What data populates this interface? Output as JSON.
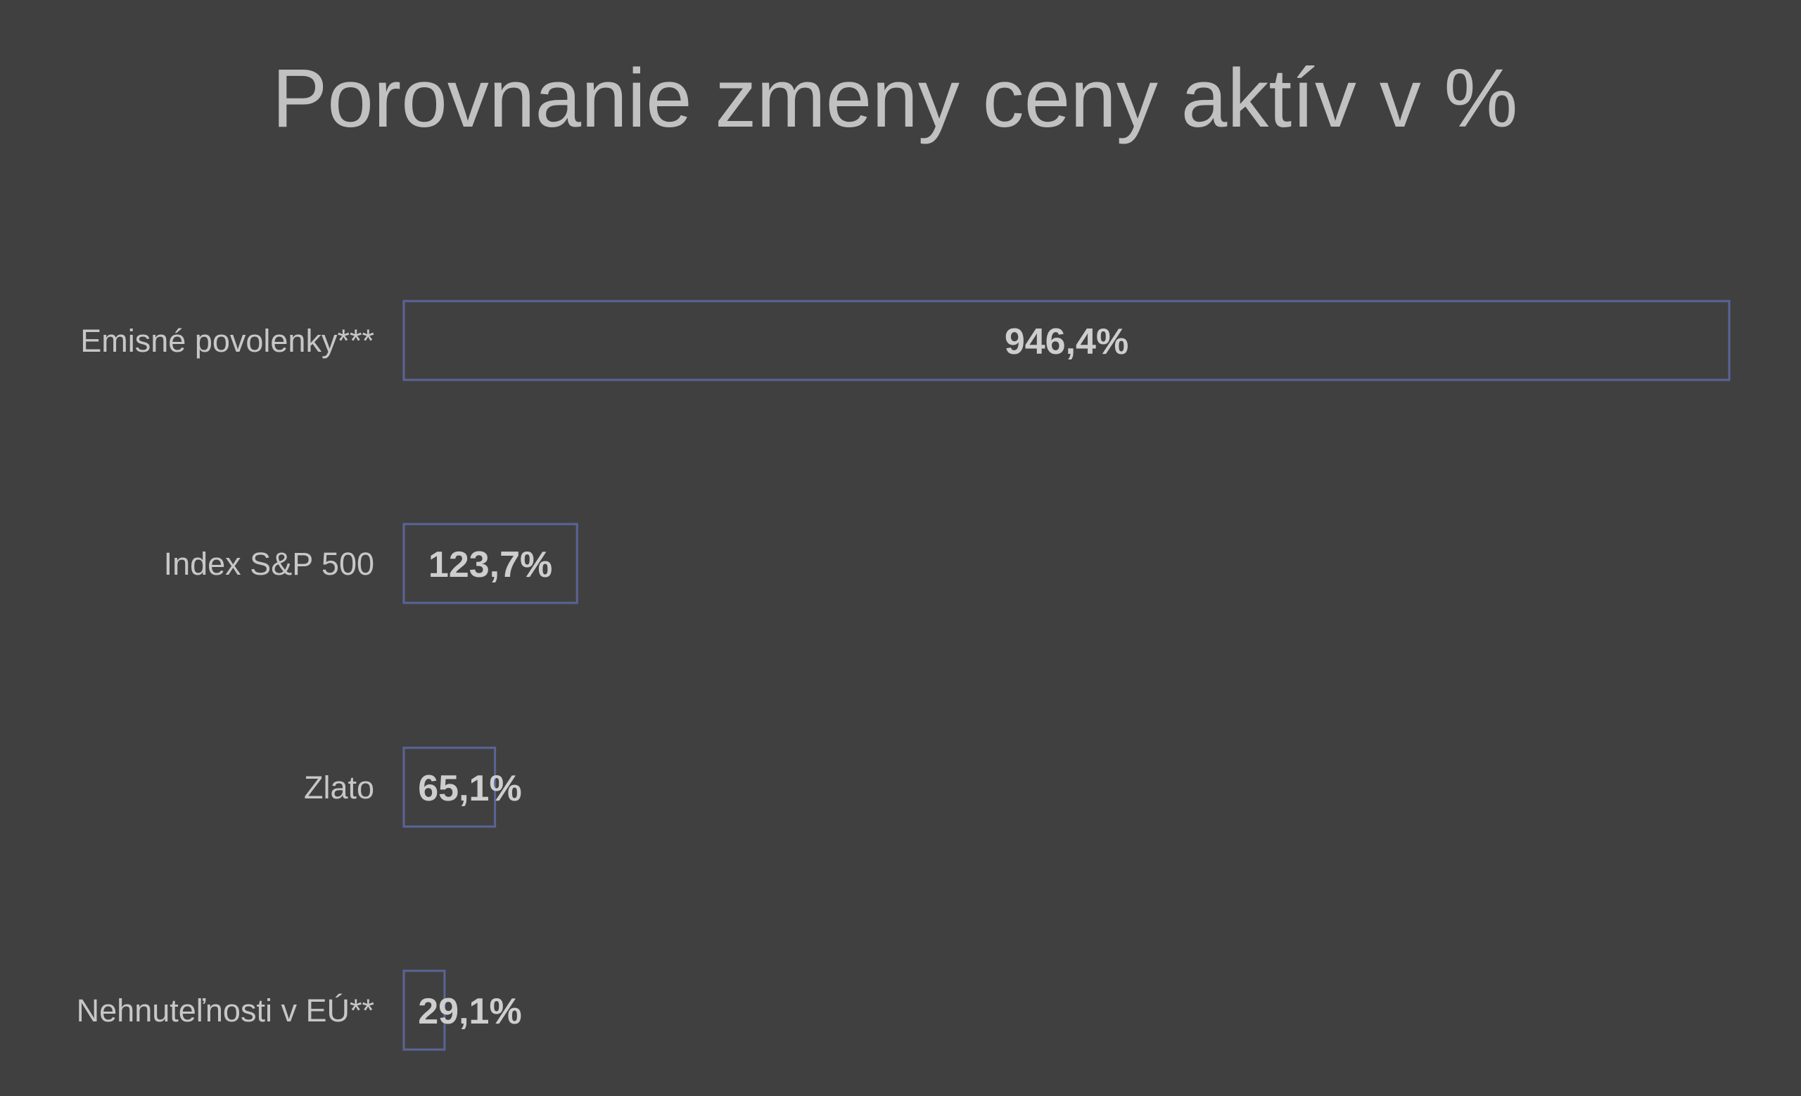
{
  "chart_data": {
    "type": "bar",
    "orientation": "horizontal",
    "title": "Porovnanie zmeny ceny aktív v %",
    "xlabel": "",
    "ylabel": "",
    "grid": false,
    "categories": [
      "Emisné povolenky***",
      "Index S&P 500",
      "Zlato",
      "Nehnuteľnosti v EÚ**"
    ],
    "values": [
      946.4,
      123.7,
      65.1,
      29.1
    ],
    "value_labels": [
      "946,4%",
      "123,7%",
      "65,1%",
      "29,1%"
    ],
    "xlim": [
      0,
      946.4
    ],
    "colors": {
      "background": "#414041",
      "bar_fill": "#414041",
      "bar_outline": "#5a6496",
      "text": "#c8c7c8"
    }
  }
}
